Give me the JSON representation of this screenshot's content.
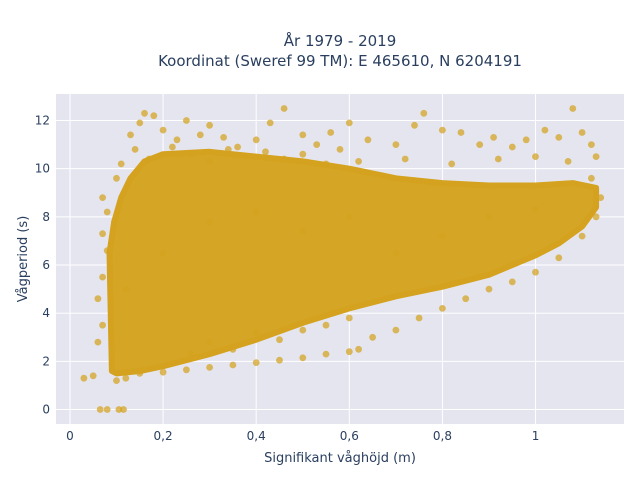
{
  "chart_data": {
    "type": "scatter",
    "title_lines": [
      "År 1979 - 2019",
      "Koordinat (Sweref 99 TM): E 465610, N 6204191"
    ],
    "xlabel": "Signifikant våghöjd (m)",
    "ylabel": "Vågperiod (s)",
    "xlim": [
      -0.03,
      1.19
    ],
    "ylim": [
      -0.6,
      13.1
    ],
    "x_ticks": [
      0,
      0.2,
      0.4,
      0.6,
      0.8,
      1
    ],
    "x_tick_labels": [
      "0",
      "0,2",
      "0,4",
      "0,6",
      "0,8",
      "1"
    ],
    "y_ticks": [
      0,
      2,
      4,
      6,
      8,
      10,
      12
    ],
    "y_tick_labels": [
      "0",
      "2",
      "4",
      "6",
      "8",
      "10",
      "12"
    ],
    "grid": true,
    "marker_color": "#d4a21e",
    "background_color": "#e5e5f0",
    "series": [
      {
        "values": [
          [
            0.03,
            1.3
          ],
          [
            0.05,
            1.4
          ],
          [
            0.06,
            2.8
          ],
          [
            0.07,
            3.5
          ],
          [
            0.06,
            4.6
          ],
          [
            0.07,
            5.5
          ],
          [
            0.08,
            6.6
          ],
          [
            0.07,
            7.3
          ],
          [
            0.08,
            8.2
          ],
          [
            0.07,
            8.8
          ],
          [
            0.065,
            0.0
          ],
          [
            0.08,
            0.0
          ],
          [
            0.105,
            0.0
          ],
          [
            0.115,
            0.0
          ],
          [
            0.1,
            1.2
          ],
          [
            0.12,
            1.3
          ],
          [
            0.15,
            1.5
          ],
          [
            0.2,
            1.55
          ],
          [
            0.25,
            1.65
          ],
          [
            0.3,
            1.75
          ],
          [
            0.35,
            1.85
          ],
          [
            0.4,
            1.95
          ],
          [
            0.45,
            2.05
          ],
          [
            0.5,
            2.15
          ],
          [
            0.55,
            2.3
          ],
          [
            0.6,
            2.4
          ],
          [
            0.65,
            3.0
          ],
          [
            0.7,
            3.3
          ],
          [
            0.75,
            3.8
          ],
          [
            0.8,
            4.2
          ],
          [
            0.85,
            4.6
          ],
          [
            0.9,
            5.0
          ],
          [
            0.95,
            5.3
          ],
          [
            1.0,
            5.7
          ],
          [
            1.05,
            6.3
          ],
          [
            1.1,
            7.2
          ],
          [
            1.13,
            8.0
          ],
          [
            0.13,
            11.4
          ],
          [
            0.15,
            11.9
          ],
          [
            0.16,
            12.3
          ],
          [
            0.18,
            12.2
          ],
          [
            0.2,
            11.6
          ],
          [
            0.23,
            11.2
          ],
          [
            0.25,
            12.0
          ],
          [
            0.28,
            11.4
          ],
          [
            0.3,
            11.8
          ],
          [
            0.33,
            11.3
          ],
          [
            0.36,
            10.9
          ],
          [
            0.4,
            11.2
          ],
          [
            0.43,
            11.9
          ],
          [
            0.46,
            12.5
          ],
          [
            0.5,
            11.4
          ],
          [
            0.53,
            11.0
          ],
          [
            0.56,
            11.5
          ],
          [
            0.58,
            10.8
          ],
          [
            0.6,
            11.9
          ],
          [
            0.64,
            11.2
          ],
          [
            0.7,
            11.0
          ],
          [
            0.74,
            11.8
          ],
          [
            0.76,
            12.3
          ],
          [
            0.8,
            11.6
          ],
          [
            0.84,
            11.5
          ],
          [
            0.88,
            11.0
          ],
          [
            0.91,
            11.3
          ],
          [
            0.95,
            10.9
          ],
          [
            0.98,
            11.2
          ],
          [
            1.02,
            11.6
          ],
          [
            1.05,
            11.3
          ],
          [
            1.08,
            12.5
          ],
          [
            1.1,
            11.5
          ],
          [
            1.12,
            11.0
          ],
          [
            1.13,
            10.5
          ],
          [
            0.62,
            10.3
          ],
          [
            0.72,
            10.4
          ],
          [
            0.82,
            10.2
          ],
          [
            0.92,
            10.4
          ],
          [
            1.0,
            10.5
          ],
          [
            1.07,
            10.3
          ],
          [
            1.12,
            9.6
          ],
          [
            1.14,
            8.8
          ],
          [
            0.1,
            9.6
          ],
          [
            0.11,
            10.2
          ],
          [
            0.14,
            10.8
          ],
          [
            0.17,
            10.4
          ],
          [
            0.22,
            10.9
          ],
          [
            0.26,
            10.6
          ],
          [
            0.3,
            10.3
          ],
          [
            0.34,
            10.8
          ],
          [
            0.38,
            10.5
          ],
          [
            0.42,
            10.7
          ],
          [
            0.46,
            10.4
          ],
          [
            0.5,
            10.6
          ],
          [
            0.55,
            10.2
          ],
          [
            0.26,
            2.3
          ],
          [
            0.3,
            2.8
          ],
          [
            0.35,
            2.5
          ],
          [
            0.4,
            3.2
          ],
          [
            0.45,
            2.9
          ],
          [
            0.5,
            3.3
          ],
          [
            0.55,
            3.5
          ],
          [
            0.6,
            3.8
          ],
          [
            0.62,
            2.5
          ],
          [
            0.12,
            5.0
          ],
          [
            0.2,
            6.5
          ],
          [
            0.3,
            7.8
          ],
          [
            0.4,
            8.2
          ],
          [
            0.5,
            7.4
          ],
          [
            0.6,
            8.0
          ],
          [
            0.7,
            6.5
          ],
          [
            0.8,
            7.2
          ],
          [
            0.9,
            8.0
          ],
          [
            1.0,
            8.3
          ]
        ]
      }
    ]
  }
}
